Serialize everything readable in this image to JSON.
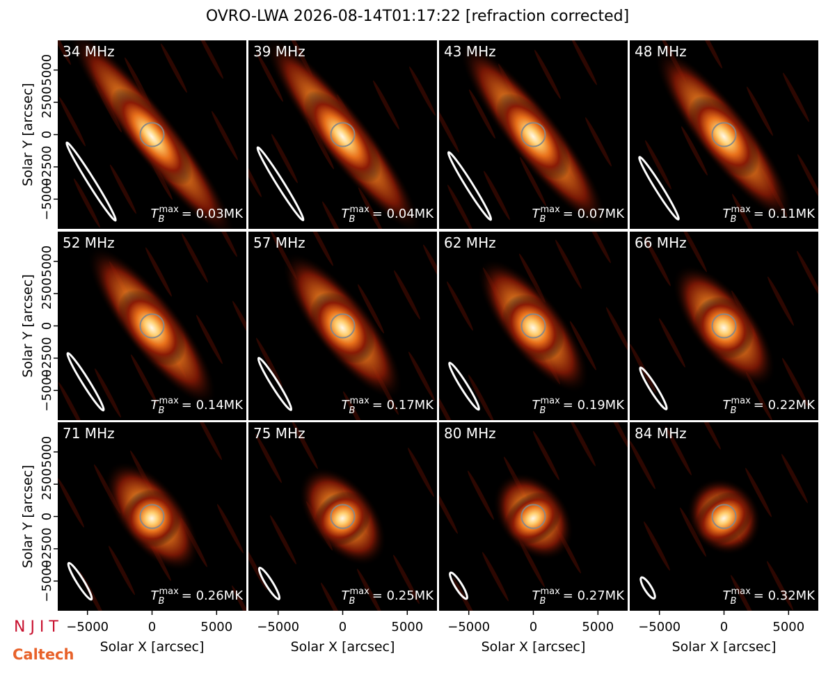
{
  "chart_data": {
    "type": "image-grid",
    "title": "OVRO-LWA 2026-08-14T01:17:22 [refraction corrected]",
    "xlabel": "Solar X [arcsec]",
    "ylabel": "Solar Y [arcsec]",
    "xlim": [
      -7300,
      7300
    ],
    "ylim": [
      -7300,
      7300
    ],
    "xticks": [
      {
        "value": -5000,
        "label": "−5000"
      },
      0,
      5000
    ],
    "yticks": [
      {
        "value": -5000,
        "label": "−5000"
      },
      {
        "value": -2500,
        "label": "−2500"
      },
      0,
      2500,
      5000
    ],
    "tb_symbol": "T",
    "tb_sub": "B",
    "tb_sup": "max",
    "panels": [
      {
        "label": "34 MHz",
        "tb_max": "= 0.03MK"
      },
      {
        "label": "39 MHz",
        "tb_max": "= 0.04MK"
      },
      {
        "label": "43 MHz",
        "tb_max": "= 0.07MK"
      },
      {
        "label": "48 MHz",
        "tb_max": "= 0.11MK"
      },
      {
        "label": "52 MHz",
        "tb_max": "= 0.14MK"
      },
      {
        "label": "57 MHz",
        "tb_max": "= 0.17MK"
      },
      {
        "label": "62 MHz",
        "tb_max": "= 0.19MK"
      },
      {
        "label": "66 MHz",
        "tb_max": "= 0.22MK"
      },
      {
        "label": "71 MHz",
        "tb_max": "= 0.26MK"
      },
      {
        "label": "75 MHz",
        "tb_max": "= 0.25MK"
      },
      {
        "label": "80 MHz",
        "tb_max": "= 0.27MK"
      },
      {
        "label": "84 MHz",
        "tb_max": "= 0.32MK"
      }
    ]
  },
  "logos": {
    "njit": "N J I T",
    "caltech": "Caltech"
  }
}
